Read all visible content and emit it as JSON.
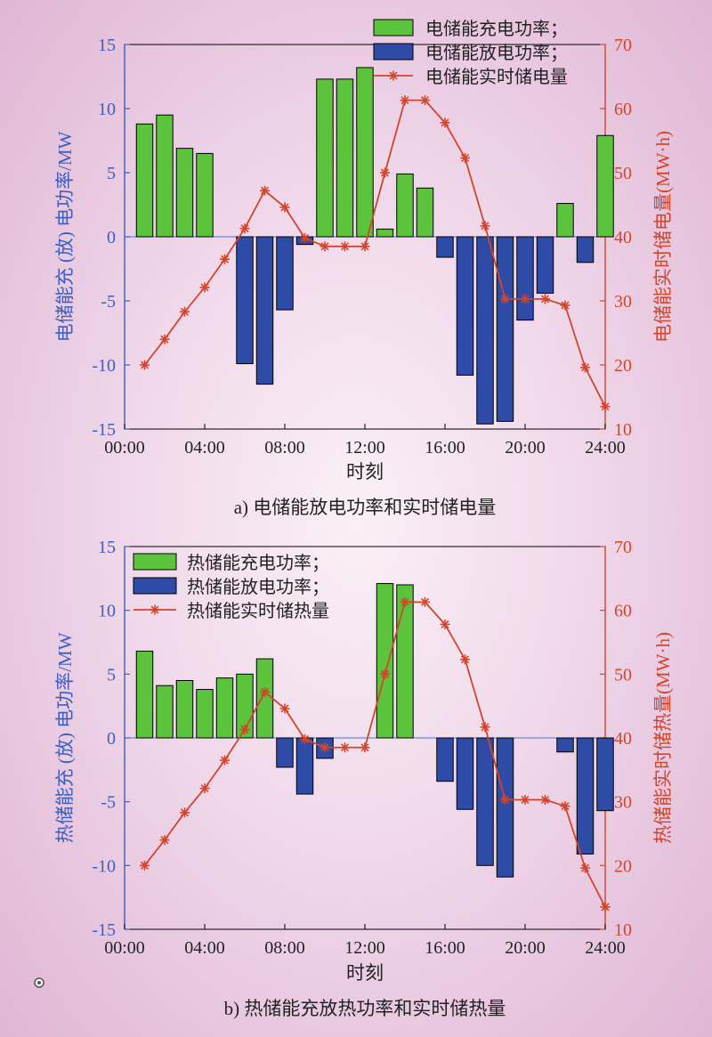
{
  "chart_data": [
    {
      "type": "bar",
      "caption": "a) 电储能放电功率和实时储电量",
      "xlabel": "时刻",
      "ylabel": "电储能充 (放) 电功率/MW",
      "ylabel_right": "电储能实时储电量(MW·h)",
      "x_ticks": [
        "00:00",
        "04:00",
        "08:00",
        "12:00",
        "16:00",
        "20:00",
        "24:00"
      ],
      "xlim": [
        0,
        24
      ],
      "ylim": [
        -15,
        15
      ],
      "y_ticks": [
        15,
        10,
        5,
        0,
        -5,
        -10,
        -15
      ],
      "ylim_right": [
        10,
        70
      ],
      "y_ticks_right": [
        70,
        60,
        50,
        40,
        30,
        20,
        10
      ],
      "legend_position": "top-right",
      "colors": {
        "charge": "#5cc43c",
        "discharge": "#2f4ba8",
        "line": "#d2452a"
      },
      "hours": [
        1,
        2,
        3,
        4,
        5,
        6,
        7,
        8,
        9,
        10,
        11,
        12,
        13,
        14,
        15,
        16,
        17,
        18,
        19,
        20,
        21,
        22,
        23,
        24
      ],
      "series": [
        {
          "name": "电储能充电功率；",
          "values": [
            8.8,
            9.5,
            6.9,
            6.5,
            0,
            0,
            0,
            0,
            0,
            12.3,
            12.3,
            13.2,
            0.6,
            4.9,
            3.8,
            0,
            0,
            0,
            0,
            0,
            0,
            2.6,
            0,
            7.9
          ]
        },
        {
          "name": "电储能放电功率；",
          "values": [
            0,
            0,
            0,
            0,
            0,
            -9.9,
            -11.5,
            -5.7,
            -0.6,
            0,
            0,
            0,
            0,
            0,
            0,
            -1.6,
            -10.8,
            -14.6,
            -14.4,
            -6.5,
            -4.4,
            0,
            -2.0,
            0
          ]
        },
        {
          "name": "电储能实时储电量",
          "axis": "right",
          "values": [
            20,
            24,
            28.3,
            32.1,
            36.5,
            41.3,
            47.2,
            44.6,
            39.8,
            38.5,
            38.5,
            38.5,
            50,
            61.3,
            61.3,
            57.8,
            52.3,
            41.7,
            30.3,
            30.3,
            30.3,
            29.3,
            19.6,
            13.5
          ]
        }
      ]
    },
    {
      "type": "bar",
      "caption": "b) 热储能充放热功率和实时储热量",
      "xlabel": "时刻",
      "ylabel": "热储能充 (放) 电功率/MW",
      "ylabel_right": "热储能实时储热量(MW·h)",
      "x_ticks": [
        "00:00",
        "04:00",
        "08:00",
        "12:00",
        "16:00",
        "20:00",
        "24:00"
      ],
      "xlim": [
        0,
        24
      ],
      "ylim": [
        -15,
        15
      ],
      "y_ticks": [
        15,
        10,
        5,
        0,
        -5,
        -10,
        -15
      ],
      "ylim_right": [
        10,
        70
      ],
      "y_ticks_right": [
        70,
        60,
        50,
        40,
        30,
        20,
        10
      ],
      "legend_position": "top-left",
      "colors": {
        "charge": "#5cc43c",
        "discharge": "#2f4ba8",
        "line": "#d2452a"
      },
      "hours": [
        1,
        2,
        3,
        4,
        5,
        6,
        7,
        8,
        9,
        10,
        11,
        12,
        13,
        14,
        15,
        16,
        17,
        18,
        19,
        20,
        21,
        22,
        23,
        24
      ],
      "series": [
        {
          "name": "热储能充电功率；",
          "values": [
            6.8,
            4.1,
            4.5,
            3.8,
            4.7,
            5.0,
            6.2,
            0,
            0,
            0,
            0,
            0,
            12.1,
            12.0,
            0,
            0,
            0,
            0,
            0,
            0,
            0,
            0,
            0,
            0
          ]
        },
        {
          "name": "热储能放电功率；",
          "values": [
            0,
            0,
            0,
            0,
            0,
            0,
            0,
            -2.3,
            -4.4,
            -1.6,
            0,
            0,
            0,
            0,
            0,
            -3.4,
            -5.6,
            -10.0,
            -10.9,
            0,
            0,
            -1.1,
            -9.1,
            -5.7
          ]
        },
        {
          "name": "热储能实时储热量",
          "axis": "right",
          "values": [
            20,
            24,
            28.3,
            32.1,
            36.5,
            41.3,
            47.2,
            44.6,
            39.8,
            38.5,
            38.5,
            38.5,
            50,
            61.3,
            61.3,
            57.8,
            52.3,
            41.7,
            30.3,
            30.3,
            30.3,
            29.3,
            19.6,
            13.5
          ]
        }
      ]
    }
  ]
}
